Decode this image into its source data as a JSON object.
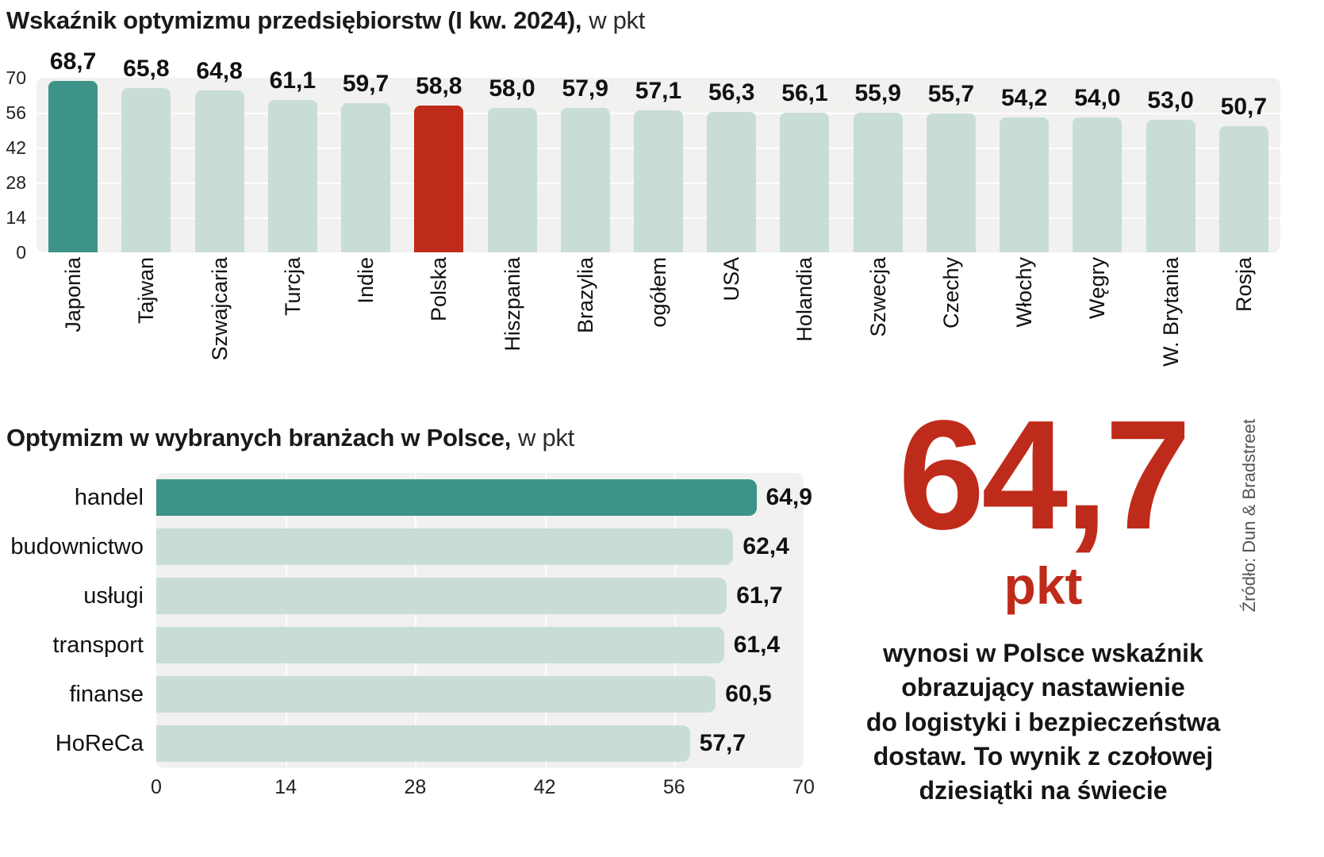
{
  "palette": {
    "teal": "#3d9387",
    "mint": "#c9ddd7",
    "red": "#bf2b1a",
    "panel": "#f1f1ef"
  },
  "chart_data": [
    {
      "type": "bar",
      "orientation": "vertical",
      "title": "Wskaźnik optymizmu przedsiębiorstw (I kw. 2024),",
      "subtitle": "w pkt",
      "categories": [
        "Japonia",
        "Tajwan",
        "Szwajcaria",
        "Turcja",
        "Indie",
        "Polska",
        "Hiszpania",
        "Brazylia",
        "ogółem",
        "USA",
        "Holandia",
        "Szwecja",
        "Czechy",
        "Włochy",
        "Węgry",
        "W. Brytania",
        "Rosja"
      ],
      "values": [
        68.7,
        65.8,
        64.8,
        61.1,
        59.7,
        58.8,
        58.0,
        57.9,
        57.1,
        56.3,
        56.1,
        55.9,
        55.7,
        54.2,
        54.0,
        53.0,
        50.7
      ],
      "value_labels": [
        "68,7",
        "65,8",
        "64,8",
        "61,1",
        "59,7",
        "58,8",
        "58,0",
        "57,9",
        "57,1",
        "56,3",
        "56,1",
        "55,9",
        "55,7",
        "54,2",
        "54,0",
        "53,0",
        "50,7"
      ],
      "bar_colors": [
        "teal",
        "mint",
        "mint",
        "mint",
        "mint",
        "red",
        "mint",
        "mint",
        "mint",
        "mint",
        "mint",
        "mint",
        "mint",
        "mint",
        "mint",
        "mint",
        "mint"
      ],
      "xlabel": "",
      "ylabel": "",
      "ylim": [
        0,
        70
      ],
      "yticks": [
        0,
        14,
        28,
        42,
        56,
        70
      ],
      "grid": true,
      "legend": "none"
    },
    {
      "type": "bar",
      "orientation": "horizontal",
      "title": "Optymizm w wybranych branżach w Polsce,",
      "subtitle": "w pkt",
      "categories": [
        "handel",
        "budownictwo",
        "usługi",
        "transport",
        "finanse",
        "HoReCa"
      ],
      "values": [
        64.9,
        62.4,
        61.7,
        61.4,
        60.5,
        57.7
      ],
      "value_labels": [
        "64,9",
        "62,4",
        "61,7",
        "61,4",
        "60,5",
        "57,7"
      ],
      "bar_colors": [
        "teal",
        "mint",
        "mint",
        "mint",
        "mint",
        "mint"
      ],
      "xlabel": "",
      "ylabel": "",
      "xlim": [
        0,
        70
      ],
      "xticks": [
        0,
        14,
        28,
        42,
        56,
        70
      ],
      "grid": true,
      "legend": "none"
    }
  ],
  "callout": {
    "value": "64,7",
    "unit": "pkt",
    "text": "wynosi w Polsce wskaźnik\nobrazujący nastawienie\ndo logistyki i bezpieczeństwa\ndostaw. To wynik z czołowej\ndziesiątki na świecie"
  },
  "source": "Źródło: Dun & Bradstreet"
}
